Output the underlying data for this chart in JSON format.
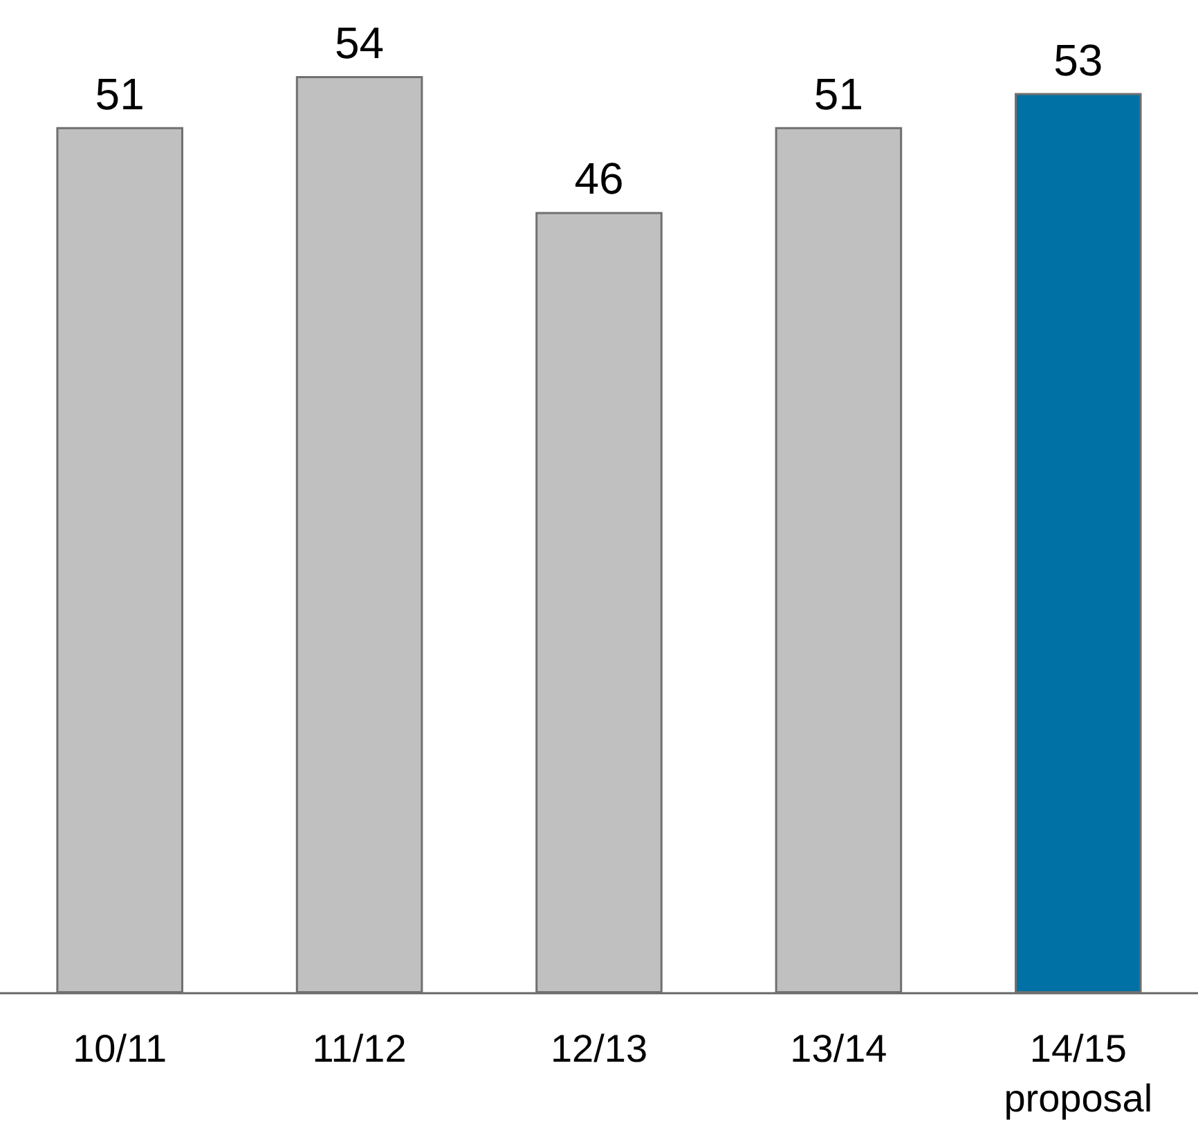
{
  "chart_data": {
    "type": "bar",
    "categories": [
      "10/11",
      "11/12",
      "12/13",
      "13/14",
      "14/15\nproposal"
    ],
    "values": [
      51,
      54,
      46,
      51,
      53
    ],
    "colors": [
      "#c0c0c0",
      "#c0c0c0",
      "#c0c0c0",
      "#c0c0c0",
      "#0071a4"
    ],
    "data_labels": true
  }
}
